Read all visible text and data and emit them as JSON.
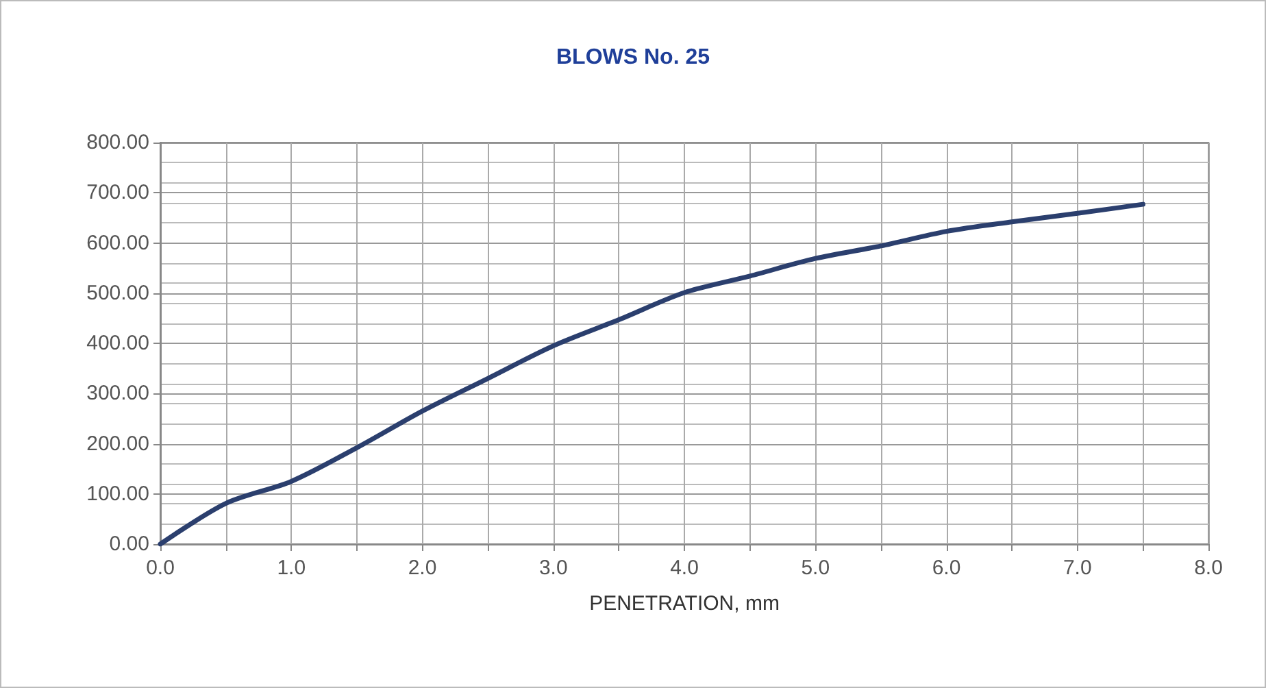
{
  "chart_data": {
    "type": "line",
    "title": "BLOWS No. 25",
    "xlabel": "PENETRATION, mm",
    "x": [
      0,
      0.5,
      1.0,
      1.5,
      2.0,
      2.5,
      3.0,
      3.5,
      4.0,
      4.5,
      5.0,
      5.5,
      6.0,
      6.5,
      7.0,
      7.5
    ],
    "series": [
      {
        "color": "#2b3f6e",
        "values": [
          0,
          81,
          125,
          192,
          265,
          330,
          395,
          447,
          501,
          534,
          569,
          594,
          623,
          642,
          659,
          677
        ]
      }
    ],
    "xlim": [
      0,
      8
    ],
    "xticks": [
      {
        "value": 0,
        "label": "0.0"
      },
      {
        "value": 0.5,
        "label": null
      },
      {
        "value": 1,
        "label": "1.0"
      },
      {
        "value": 1.5,
        "label": null
      },
      {
        "value": 2,
        "label": "2.0"
      },
      {
        "value": 2.5,
        "label": null
      },
      {
        "value": 3,
        "label": "3.0"
      },
      {
        "value": 3.5,
        "label": null
      },
      {
        "value": 4,
        "label": "4.0"
      },
      {
        "value": 4.5,
        "label": null
      },
      {
        "value": 5,
        "label": "5.0"
      },
      {
        "value": 5.5,
        "label": null
      },
      {
        "value": 6,
        "label": "6.0"
      },
      {
        "value": 6.5,
        "label": null
      },
      {
        "value": 7,
        "label": "7.0"
      },
      {
        "value": 7.5,
        "label": null
      },
      {
        "value": 8,
        "label": "8.0"
      }
    ],
    "ylim": [
      0,
      800
    ],
    "yticks": [
      {
        "value": 0,
        "label": "0.00"
      },
      {
        "value": 100,
        "label": "100.00"
      },
      {
        "value": 200,
        "label": "200.00"
      },
      {
        "value": 300,
        "label": "300.00"
      },
      {
        "value": 400,
        "label": "400.00"
      },
      {
        "value": 500,
        "label": "500.00"
      },
      {
        "value": 600,
        "label": "600.00"
      },
      {
        "value": 700,
        "label": "700.00"
      },
      {
        "value": 800,
        "label": "800.00"
      }
    ],
    "grid": true,
    "marker": "none",
    "line_style": "solid"
  }
}
